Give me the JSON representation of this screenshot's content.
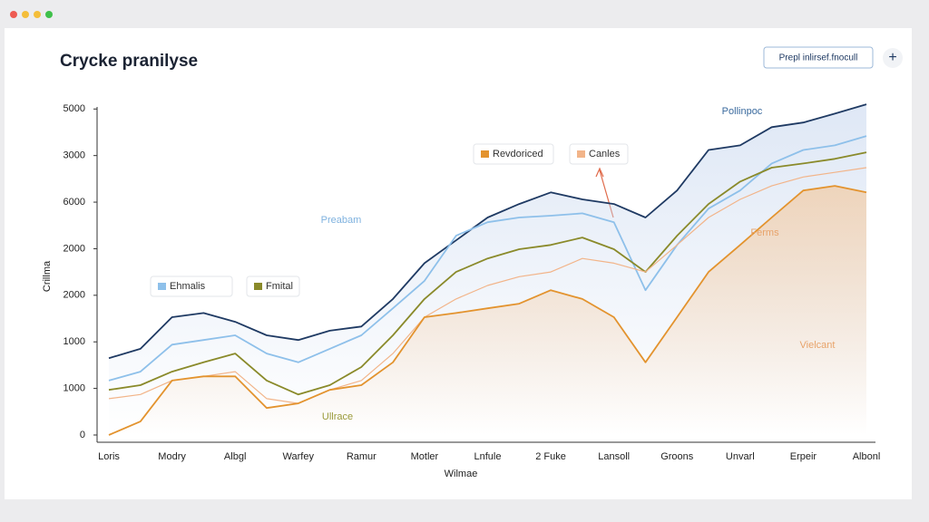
{
  "header": {
    "title": "Crycke pranilyse",
    "button": "Prepl inlirsef.fnocull",
    "add_button": "+"
  },
  "chart_data": {
    "type": "line",
    "x_label": "Wilmae",
    "y_label": "Crillma",
    "categories": [
      "Loris",
      null,
      "Modry",
      null,
      "Albgl",
      null,
      "Warfey",
      null,
      "Ramur",
      null,
      "Motler",
      null,
      "Lnfule",
      null,
      "2 Fuke",
      null,
      "Lansoll",
      null,
      "Groons",
      null,
      "Unvarl",
      null,
      "Erpeir",
      null,
      "Albonl"
    ],
    "ylim": [
      0,
      7.2
    ],
    "yticks": [
      {
        "value": 0,
        "label": "0"
      },
      {
        "value": 1,
        "label": "1000"
      },
      {
        "value": 2,
        "label": "1000"
      },
      {
        "value": 3,
        "label": "2000"
      },
      {
        "value": 4,
        "label": "2000"
      },
      {
        "value": 5,
        "label": "6000"
      },
      {
        "value": 6,
        "label": "3000"
      },
      {
        "value": 7,
        "label": "5000"
      }
    ],
    "grid": false,
    "series": [
      {
        "name": "Pollinpoc",
        "color": "#1f3a63",
        "values": [
          1.65,
          1.85,
          2.53,
          2.62,
          2.43,
          2.14,
          2.04,
          2.24,
          2.33,
          2.92,
          3.69,
          4.18,
          4.67,
          4.96,
          5.21,
          5.06,
          4.96,
          4.67,
          5.25,
          6.12,
          6.22,
          6.61,
          6.71,
          6.9,
          7.1
        ]
      },
      {
        "name": "Ehmalis",
        "color": "#8ec0ea",
        "values": [
          1.17,
          1.36,
          1.94,
          2.04,
          2.14,
          1.75,
          1.56,
          1.85,
          2.14,
          2.72,
          3.31,
          4.28,
          4.57,
          4.67,
          4.71,
          4.76,
          4.57,
          3.11,
          4.08,
          4.86,
          5.25,
          5.83,
          6.12,
          6.22,
          6.42
        ]
      },
      {
        "name": "Fmital",
        "color": "#8a8a2a",
        "values": [
          0.97,
          1.07,
          1.36,
          1.56,
          1.75,
          1.17,
          0.87,
          1.07,
          1.46,
          2.14,
          2.92,
          3.5,
          3.79,
          3.99,
          4.08,
          4.24,
          3.99,
          3.5,
          4.28,
          4.96,
          5.44,
          5.74,
          5.83,
          5.93,
          6.07
        ]
      },
      {
        "name": "Canles",
        "color": "#f2b489",
        "values": [
          0.78,
          0.87,
          1.17,
          1.26,
          1.36,
          0.78,
          0.68,
          0.97,
          1.17,
          1.75,
          2.53,
          2.92,
          3.21,
          3.4,
          3.5,
          3.79,
          3.69,
          3.5,
          4.08,
          4.67,
          5.06,
          5.35,
          5.54,
          5.64,
          5.74
        ]
      },
      {
        "name": "Revdoriced",
        "color": "#e3932e",
        "values": [
          0,
          0.29,
          1.17,
          1.26,
          1.26,
          0.58,
          0.68,
          0.97,
          1.07,
          1.56,
          2.53,
          2.62,
          2.72,
          2.82,
          3.11,
          2.92,
          2.53,
          1.56,
          2.53,
          3.5,
          4.08,
          4.67,
          5.25,
          5.35,
          5.21
        ]
      }
    ],
    "annotations": [
      "Preabam",
      "Ferms",
      "Vielcant",
      "Ullrace"
    ]
  }
}
